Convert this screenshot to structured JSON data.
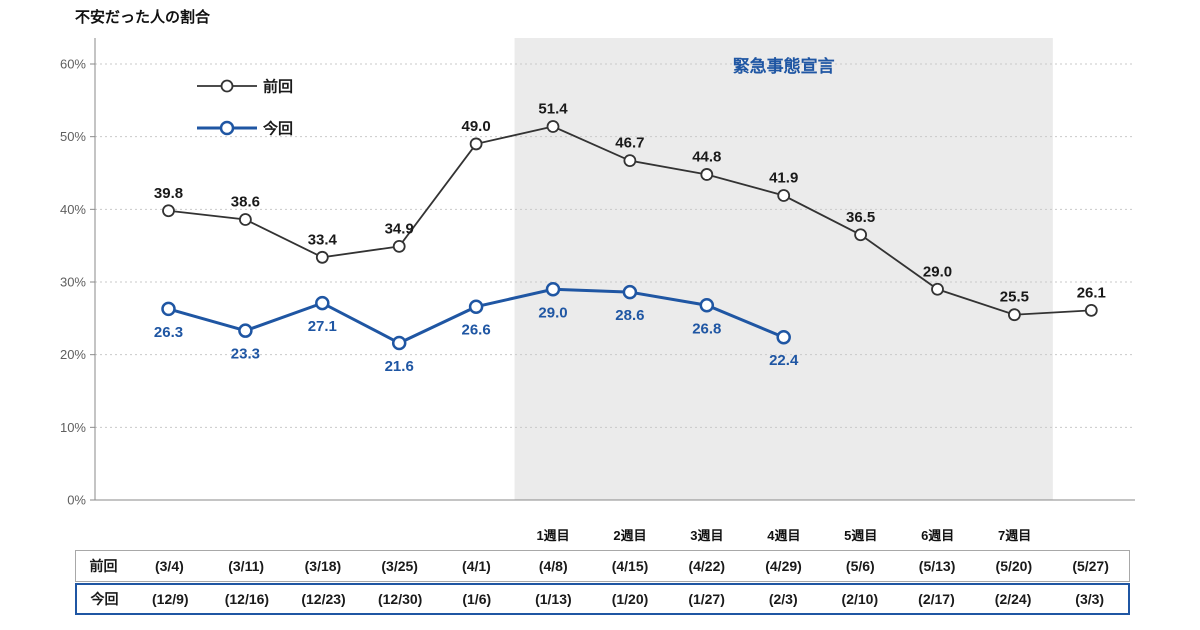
{
  "title": "不安だった人の割合",
  "colors": {
    "previous": "#333333",
    "current": "#1f56a3",
    "band": "#ebebeb",
    "grid": "#c9c9c9",
    "axis": "#8a8a8a",
    "tick_text": "#5f5f5f",
    "label_dark": "#1a1a1a"
  },
  "chart_data": {
    "type": "line",
    "title": "不安だった人の割合",
    "xlabel": "",
    "ylabel": "",
    "ylim": [
      0,
      60
    ],
    "yticks": [
      0,
      10,
      20,
      30,
      40,
      50,
      60
    ],
    "ytick_labels": [
      "0%",
      "10%",
      "20%",
      "30%",
      "40%",
      "50%",
      "60%"
    ],
    "grid": true,
    "legend_position": "top-left-inside",
    "series": [
      {
        "name": "前回",
        "color": "#333333",
        "dates": [
          "(3/4)",
          "(3/11)",
          "(3/18)",
          "(3/25)",
          "(4/1)",
          "(4/8)",
          "(4/15)",
          "(4/22)",
          "(4/29)",
          "(5/6)",
          "(5/13)",
          "(5/20)",
          "(5/27)"
        ],
        "values": [
          39.8,
          38.6,
          33.4,
          34.9,
          49.0,
          51.4,
          46.7,
          44.8,
          41.9,
          36.5,
          29.0,
          25.5,
          26.1
        ]
      },
      {
        "name": "今回",
        "color": "#1f56a3",
        "dates": [
          "(12/9)",
          "(12/16)",
          "(12/23)",
          "(12/30)",
          "(1/6)",
          "(1/13)",
          "(1/20)",
          "(1/27)",
          "(2/3)",
          "(2/10)",
          "(2/17)",
          "(2/24)",
          "(3/3)"
        ],
        "values": [
          26.3,
          23.3,
          27.1,
          21.6,
          26.6,
          29.0,
          28.6,
          26.8,
          22.4
        ]
      }
    ],
    "annotation": {
      "label": "緊急事態宣言",
      "band_start_between": [
        4,
        5
      ],
      "band_end_between": [
        11,
        12
      ]
    },
    "week_labels": [
      "1週目",
      "2週目",
      "3週目",
      "4週目",
      "5週目",
      "6週目",
      "7週目"
    ],
    "week_label_start_index": 5
  },
  "table": {
    "rows": [
      {
        "key": "previous",
        "header": "前回",
        "cells": [
          "(3/4)",
          "(3/11)",
          "(3/18)",
          "(3/25)",
          "(4/1)",
          "(4/8)",
          "(4/15)",
          "(4/22)",
          "(4/29)",
          "(5/6)",
          "(5/13)",
          "(5/20)",
          "(5/27)"
        ]
      },
      {
        "key": "current",
        "header": "今回",
        "cells": [
          "(12/9)",
          "(12/16)",
          "(12/23)",
          "(12/30)",
          "(1/6)",
          "(1/13)",
          "(1/20)",
          "(1/27)",
          "(2/3)",
          "(2/10)",
          "(2/17)",
          "(2/24)",
          "(3/3)"
        ]
      }
    ]
  }
}
